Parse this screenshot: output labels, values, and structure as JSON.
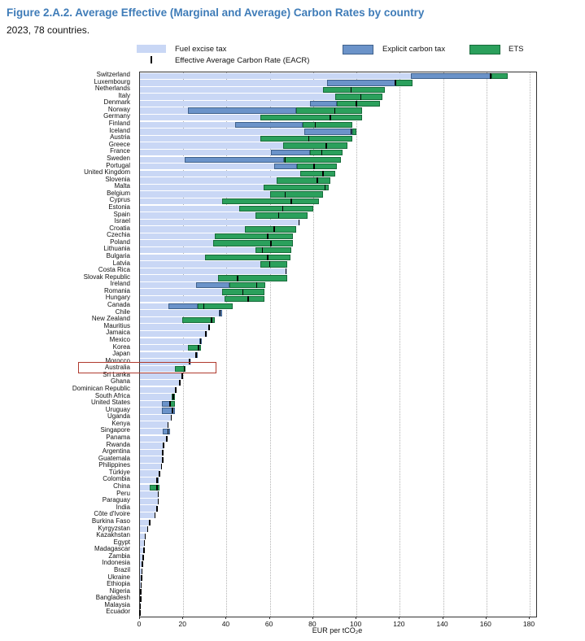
{
  "header": {
    "title": "Figure 2.A.2. Average Effective (Marginal and Average) Carbon Rates by country",
    "subtitle": "2023, 78 countries."
  },
  "legend": {
    "fuel_label": "Fuel excise tax",
    "carbon_label": "Explicit carbon tax",
    "ets_label": "ETS",
    "eacr_label": "Effective Average Carbon Rate (EACR)"
  },
  "colors": {
    "title": "#3f7cb8",
    "fuel": "#c9d7f5",
    "carbon": "#6b93c9",
    "carbon_border": "#3f618c",
    "ets": "#2ba05c",
    "ets_border": "#176b3a",
    "eacr": "#000000",
    "grid": "#b3b3b3",
    "plot_border": "#333333",
    "highlight": "#b03a2e"
  },
  "highlight": {
    "country": "Australia"
  },
  "chart_data": {
    "type": "bar",
    "orientation": "horizontal",
    "stacked": true,
    "title": "Figure 2.A.2. Average Effective (Marginal and Average) Carbon Rates by country",
    "subtitle": "2023, 78 countries.",
    "xlabel": "EUR per tCO₂e",
    "xlim": [
      0,
      183
    ],
    "xticks": [
      0,
      20,
      40,
      60,
      80,
      100,
      120,
      140,
      160,
      180
    ],
    "grid": "vertical-dotted",
    "legend_position": "top",
    "series_names": [
      "Fuel excise tax",
      "Explicit carbon tax",
      "ETS"
    ],
    "marker_series": "Effective Average Carbon Rate (EACR)",
    "units": "EUR per tCO2e",
    "countries": [
      {
        "name": "Switzerland",
        "fuel": 125,
        "carbon": 37.5,
        "ets": 7.5,
        "eacr": 162
      },
      {
        "name": "Luxembourg",
        "fuel": 86.5,
        "carbon": 31.5,
        "ets": 8,
        "eacr": 118
      },
      {
        "name": "Netherlands",
        "fuel": 84.5,
        "carbon": 0,
        "ets": 28.5,
        "eacr": 97.5
      },
      {
        "name": "Italy",
        "fuel": 90,
        "carbon": 0,
        "ets": 22,
        "eacr": 102
      },
      {
        "name": "Denmark",
        "fuel": 78.5,
        "carbon": 12.5,
        "ets": 20,
        "eacr": 100
      },
      {
        "name": "Norway",
        "fuel": 22,
        "carbon": 50,
        "ets": 30.5,
        "eacr": 90
      },
      {
        "name": "Germany",
        "fuel": 55.5,
        "carbon": 0,
        "ets": 47,
        "eacr": 88
      },
      {
        "name": "Finland",
        "fuel": 44,
        "carbon": 31,
        "ets": 23,
        "eacr": 81
      },
      {
        "name": "Iceland",
        "fuel": 76,
        "carbon": 22,
        "ets": 2,
        "eacr": 97.5
      },
      {
        "name": "Austria",
        "fuel": 55.5,
        "carbon": 0,
        "ets": 42.5,
        "eacr": 78
      },
      {
        "name": "Greece",
        "fuel": 66,
        "carbon": 0,
        "ets": 30,
        "eacr": 86
      },
      {
        "name": "France",
        "fuel": 60.5,
        "carbon": 18,
        "ets": 15,
        "eacr": 84
      },
      {
        "name": "Sweden",
        "fuel": 20.5,
        "carbon": 46,
        "ets": 26.5,
        "eacr": 67
      },
      {
        "name": "Portugal",
        "fuel": 62,
        "carbon": 10.5,
        "ets": 18.5,
        "eacr": 80.5
      },
      {
        "name": "United Kingdom",
        "fuel": 74,
        "carbon": 0,
        "ets": 16,
        "eacr": 84.5
      },
      {
        "name": "Slovenia",
        "fuel": 63,
        "carbon": 0,
        "ets": 25,
        "eacr": 82
      },
      {
        "name": "Malta",
        "fuel": 57,
        "carbon": 0,
        "ets": 30,
        "eacr": 85.5
      },
      {
        "name": "Belgium",
        "fuel": 60,
        "carbon": 0,
        "ets": 24.5,
        "eacr": 67
      },
      {
        "name": "Cyprus",
        "fuel": 38,
        "carbon": 0,
        "ets": 44.5,
        "eacr": 70
      },
      {
        "name": "Estonia",
        "fuel": 46,
        "carbon": 0,
        "ets": 34,
        "eacr": 66
      },
      {
        "name": "Spain",
        "fuel": 53.5,
        "carbon": 0,
        "ets": 24,
        "eacr": 64
      },
      {
        "name": "Israel",
        "fuel": 74,
        "carbon": 0,
        "ets": 0,
        "eacr": 73.5
      },
      {
        "name": "Croatia",
        "fuel": 48.5,
        "carbon": 0,
        "ets": 23.5,
        "eacr": 62
      },
      {
        "name": "Czechia",
        "fuel": 34.5,
        "carbon": 0,
        "ets": 36,
        "eacr": 59
      },
      {
        "name": "Poland",
        "fuel": 34,
        "carbon": 0,
        "ets": 36.5,
        "eacr": 60.5
      },
      {
        "name": "Lithuania",
        "fuel": 53.5,
        "carbon": 0,
        "ets": 16.5,
        "eacr": 56.5
      },
      {
        "name": "Bulgaria",
        "fuel": 30,
        "carbon": 0,
        "ets": 39.5,
        "eacr": 59
      },
      {
        "name": "Latvia",
        "fuel": 55.5,
        "carbon": 0,
        "ets": 12.5,
        "eacr": 60
      },
      {
        "name": "Costa Rica",
        "fuel": 68,
        "carbon": 0,
        "ets": 0,
        "eacr": 67.5
      },
      {
        "name": "Slovak Republic",
        "fuel": 36,
        "carbon": 0,
        "ets": 32,
        "eacr": 45
      },
      {
        "name": "Ireland",
        "fuel": 26,
        "carbon": 15.5,
        "ets": 16.5,
        "eacr": 54
      },
      {
        "name": "Romania",
        "fuel": 38,
        "carbon": 0,
        "ets": 19.5,
        "eacr": 47.5
      },
      {
        "name": "Hungary",
        "fuel": 39,
        "carbon": 0,
        "ets": 18.5,
        "eacr": 50
      },
      {
        "name": "Canada",
        "fuel": 13,
        "carbon": 13.5,
        "ets": 16.5,
        "eacr": 29.5
      },
      {
        "name": "Chile",
        "fuel": 36.5,
        "carbon": 1.5,
        "ets": 0,
        "eacr": 37
      },
      {
        "name": "New Zealand",
        "fuel": 19.5,
        "carbon": 0,
        "ets": 15,
        "eacr": 33
      },
      {
        "name": "Mauritius",
        "fuel": 32.5,
        "carbon": 0,
        "ets": 0,
        "eacr": 32
      },
      {
        "name": "Jamaica",
        "fuel": 31,
        "carbon": 0,
        "ets": 0,
        "eacr": 30.5
      },
      {
        "name": "Mexico",
        "fuel": 27.5,
        "carbon": 1,
        "ets": 0,
        "eacr": 28
      },
      {
        "name": "Korea",
        "fuel": 22,
        "carbon": 0,
        "ets": 6,
        "eacr": 27
      },
      {
        "name": "Japan",
        "fuel": 25.5,
        "carbon": 1,
        "ets": 0,
        "eacr": 26
      },
      {
        "name": "Morocco",
        "fuel": 23.5,
        "carbon": 0,
        "ets": 0,
        "eacr": 23
      },
      {
        "name": "Australia",
        "fuel": 16,
        "carbon": 0,
        "ets": 5,
        "eacr": 20.5
      },
      {
        "name": "Sri Lanka",
        "fuel": 19.5,
        "carbon": 0,
        "ets": 0,
        "eacr": 19.5
      },
      {
        "name": "Ghana",
        "fuel": 18.5,
        "carbon": 0,
        "ets": 0,
        "eacr": 18.5
      },
      {
        "name": "Dominican Republic",
        "fuel": 16.5,
        "carbon": 0,
        "ets": 0,
        "eacr": 16.5
      },
      {
        "name": "South Africa",
        "fuel": 14.5,
        "carbon": 0,
        "ets": 1.5,
        "eacr": 15.5
      },
      {
        "name": "United States",
        "fuel": 10,
        "carbon": 4,
        "ets": 2,
        "eacr": 14
      },
      {
        "name": "Uruguay",
        "fuel": 10,
        "carbon": 6,
        "ets": 0,
        "eacr": 15
      },
      {
        "name": "Uganda",
        "fuel": 14.5,
        "carbon": 0,
        "ets": 0,
        "eacr": 14.5
      },
      {
        "name": "Kenya",
        "fuel": 13,
        "carbon": 0,
        "ets": 0,
        "eacr": 13
      },
      {
        "name": "Singapore",
        "fuel": 10.5,
        "carbon": 3.5,
        "ets": 0,
        "eacr": 13
      },
      {
        "name": "Panama",
        "fuel": 12.5,
        "carbon": 0,
        "ets": 0,
        "eacr": 12.5
      },
      {
        "name": "Rwanda",
        "fuel": 11,
        "carbon": 0,
        "ets": 0,
        "eacr": 11
      },
      {
        "name": "Argentina",
        "fuel": 10,
        "carbon": 1,
        "ets": 0,
        "eacr": 10.5
      },
      {
        "name": "Guatemala",
        "fuel": 10.5,
        "carbon": 0,
        "ets": 0,
        "eacr": 10.5
      },
      {
        "name": "Philippines",
        "fuel": 10,
        "carbon": 0,
        "ets": 0,
        "eacr": 10
      },
      {
        "name": "Türkiye",
        "fuel": 9,
        "carbon": 0,
        "ets": 0,
        "eacr": 9
      },
      {
        "name": "Colombia",
        "fuel": 7.5,
        "carbon": 1,
        "ets": 0,
        "eacr": 8
      },
      {
        "name": "China",
        "fuel": 4.5,
        "carbon": 0,
        "ets": 4.5,
        "eacr": 8
      },
      {
        "name": "Peru",
        "fuel": 8.5,
        "carbon": 0,
        "ets": 0,
        "eacr": 8.5
      },
      {
        "name": "Paraguay",
        "fuel": 8.4,
        "carbon": 0,
        "ets": 0,
        "eacr": 8.4
      },
      {
        "name": "India",
        "fuel": 8,
        "carbon": 0,
        "ets": 0,
        "eacr": 8
      },
      {
        "name": "Côte d'Ivoire",
        "fuel": 7,
        "carbon": 0,
        "ets": 0,
        "eacr": 7
      },
      {
        "name": "Burkina Faso",
        "fuel": 4.5,
        "carbon": 0,
        "ets": 0,
        "eacr": 4.5
      },
      {
        "name": "Kyrgyzstan",
        "fuel": 3.6,
        "carbon": 0,
        "ets": 0,
        "eacr": 3.6
      },
      {
        "name": "Kazakhstan",
        "fuel": 2.5,
        "carbon": 0,
        "ets": 0,
        "eacr": 2.5
      },
      {
        "name": "Egypt",
        "fuel": 2.1,
        "carbon": 0,
        "ets": 0,
        "eacr": 2.1
      },
      {
        "name": "Madagascar",
        "fuel": 1.9,
        "carbon": 0,
        "ets": 0,
        "eacr": 1.9
      },
      {
        "name": "Zambia",
        "fuel": 1.6,
        "carbon": 0,
        "ets": 0,
        "eacr": 1.6
      },
      {
        "name": "Indonesia",
        "fuel": 1.2,
        "carbon": 0,
        "ets": 0,
        "eacr": 1.2
      },
      {
        "name": "Brazil",
        "fuel": 0.9,
        "carbon": 0,
        "ets": 0,
        "eacr": 0.9
      },
      {
        "name": "Ukraine",
        "fuel": 0.7,
        "carbon": 0,
        "ets": 0,
        "eacr": 0.7
      },
      {
        "name": "Ethiopia",
        "fuel": 0.5,
        "carbon": 0,
        "ets": 0,
        "eacr": 0.5
      },
      {
        "name": "Nigeria",
        "fuel": 0.4,
        "carbon": 0,
        "ets": 0,
        "eacr": 0.4
      },
      {
        "name": "Bangladesh",
        "fuel": 0.3,
        "carbon": 0,
        "ets": 0,
        "eacr": 0.3
      },
      {
        "name": "Malaysia",
        "fuel": 0.2,
        "carbon": 0,
        "ets": 0,
        "eacr": 0.2
      },
      {
        "name": "Ecuador",
        "fuel": 0.1,
        "carbon": 0,
        "ets": 0,
        "eacr": 0.1
      }
    ]
  }
}
